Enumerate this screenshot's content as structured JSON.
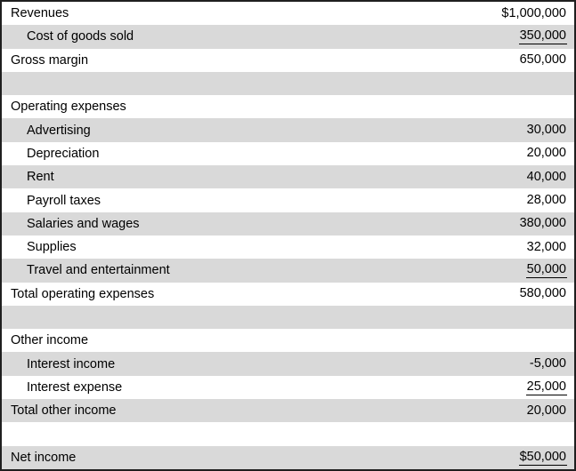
{
  "document": {
    "kind": "income-statement",
    "colors": {
      "row_shade": "#d9d9d9",
      "row_plain": "#ffffff",
      "border": "#1f1f1f",
      "text": "#000000"
    }
  },
  "table": {
    "rows": [
      {
        "label": "Revenues",
        "value": "$1,000,000",
        "indent": false,
        "shaded": false,
        "underline": false
      },
      {
        "label": "Cost of goods sold",
        "value": "350,000",
        "indent": true,
        "shaded": true,
        "underline": true
      },
      {
        "label": "Gross margin",
        "value": "650,000",
        "indent": false,
        "shaded": false,
        "underline": false
      },
      {
        "label": "",
        "value": "",
        "indent": false,
        "shaded": true,
        "underline": false
      },
      {
        "label": "Operating expenses",
        "value": "",
        "indent": false,
        "shaded": false,
        "underline": false
      },
      {
        "label": "Advertising",
        "value": "30,000",
        "indent": true,
        "shaded": true,
        "underline": false
      },
      {
        "label": "Depreciation",
        "value": "20,000",
        "indent": true,
        "shaded": false,
        "underline": false
      },
      {
        "label": "Rent",
        "value": "40,000",
        "indent": true,
        "shaded": true,
        "underline": false
      },
      {
        "label": "Payroll taxes",
        "value": "28,000",
        "indent": true,
        "shaded": false,
        "underline": false
      },
      {
        "label": "Salaries and wages",
        "value": "380,000",
        "indent": true,
        "shaded": true,
        "underline": false
      },
      {
        "label": "Supplies",
        "value": "32,000",
        "indent": true,
        "shaded": false,
        "underline": false
      },
      {
        "label": "Travel and entertainment",
        "value": "50,000",
        "indent": true,
        "shaded": true,
        "underline": true
      },
      {
        "label": "Total operating expenses",
        "value": "580,000",
        "indent": false,
        "shaded": false,
        "underline": false
      },
      {
        "label": "",
        "value": "",
        "indent": false,
        "shaded": true,
        "underline": false
      },
      {
        "label": "Other income",
        "value": "",
        "indent": false,
        "shaded": false,
        "underline": false
      },
      {
        "label": "Interest income",
        "value": "-5,000",
        "indent": true,
        "shaded": true,
        "underline": false
      },
      {
        "label": "Interest expense",
        "value": "25,000",
        "indent": true,
        "shaded": false,
        "underline": true
      },
      {
        "label": "Total other income",
        "value": "20,000",
        "indent": false,
        "shaded": true,
        "underline": false
      },
      {
        "label": "",
        "value": "",
        "indent": false,
        "shaded": false,
        "underline": false
      },
      {
        "label": "Net income",
        "value": "$50,000",
        "indent": false,
        "shaded": true,
        "underline": true
      }
    ]
  }
}
